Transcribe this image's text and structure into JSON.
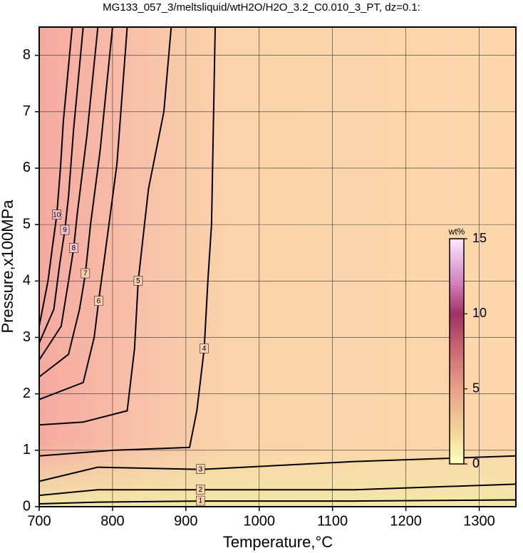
{
  "chart_data": {
    "type": "contour",
    "title": "MG133_057_3/meltsliquid/wtH2O/H2O_3.2_C0.010_3_PT, dz=0.1:",
    "x_label": "Temperature,°C",
    "y_label": "Pressure,x100MPa",
    "xlim": [
      700,
      1350
    ],
    "ylim": [
      0,
      8.5
    ],
    "xticks": [
      700,
      800,
      900,
      1000,
      1100,
      1200,
      1300
    ],
    "yticks": [
      0,
      1,
      2,
      3,
      4,
      5,
      6,
      7,
      8
    ],
    "grid": true,
    "line_color": "#000000",
    "contours": [
      {
        "level": 1,
        "x": [
          700,
          780,
          920,
          1130,
          1350
        ],
        "y": [
          0.05,
          0.08,
          0.1,
          0.1,
          0.12
        ]
      },
      {
        "level": 2,
        "x": [
          700,
          780,
          920,
          1130,
          1350
        ],
        "y": [
          0.2,
          0.3,
          0.3,
          0.3,
          0.4
        ]
      },
      {
        "level": 3,
        "x": [
          700,
          780,
          920,
          1130,
          1350
        ],
        "y": [
          0.45,
          0.7,
          0.66,
          0.8,
          0.9
        ]
      },
      {
        "level": 4,
        "x": [
          700,
          800,
          905,
          915,
          925,
          930,
          935,
          940
        ],
        "y": [
          0.9,
          1.0,
          1.05,
          1.7,
          2.8,
          4.0,
          5.0,
          8.5
        ]
      },
      {
        "level": 5,
        "x": [
          700,
          760,
          820,
          830,
          835,
          849,
          870,
          880
        ],
        "y": [
          1.45,
          1.5,
          1.7,
          2.8,
          4.0,
          5.63,
          7.0,
          8.5
        ]
      },
      {
        "level": 6,
        "x": [
          700,
          760,
          775,
          781,
          790,
          806,
          820
        ],
        "y": [
          1.9,
          2.2,
          3.0,
          3.64,
          4.5,
          6.07,
          8.5
        ]
      },
      {
        "level": 7,
        "x": [
          700,
          740,
          755,
          763,
          770,
          783,
          800
        ],
        "y": [
          2.3,
          2.7,
          3.5,
          4.13,
          5.0,
          6.3,
          8.5
        ]
      },
      {
        "level": 8,
        "x": [
          700,
          730,
          740,
          747,
          752,
          765,
          780
        ],
        "y": [
          2.6,
          3.2,
          4.0,
          4.58,
          5.2,
          6.57,
          8.5
        ]
      },
      {
        "level": 9,
        "x": [
          700,
          720,
          728,
          735,
          740,
          747,
          760
        ],
        "y": [
          2.9,
          3.5,
          4.3,
          4.9,
          5.5,
          6.7,
          8.5
        ]
      },
      {
        "level": 10,
        "x": [
          700,
          712,
          718,
          724,
          729,
          733,
          745
        ],
        "y": [
          3.2,
          4.0,
          4.6,
          5.17,
          6.0,
          6.84,
          8.5
        ]
      }
    ],
    "colorbar": {
      "label": "wt%",
      "lim": [
        0,
        15
      ],
      "ticks": [
        0,
        5,
        10,
        15
      ],
      "colormap": [
        {
          "value": 0,
          "color": "#ffffc0"
        },
        {
          "value": 2,
          "color": "#f2d89a"
        },
        {
          "value": 5,
          "color": "#e8a088"
        },
        {
          "value": 8,
          "color": "#c46070"
        },
        {
          "value": 10,
          "color": "#a03060"
        },
        {
          "value": 12,
          "color": "#d080c0"
        },
        {
          "value": 15,
          "color": "#ffe8ff"
        }
      ]
    }
  }
}
